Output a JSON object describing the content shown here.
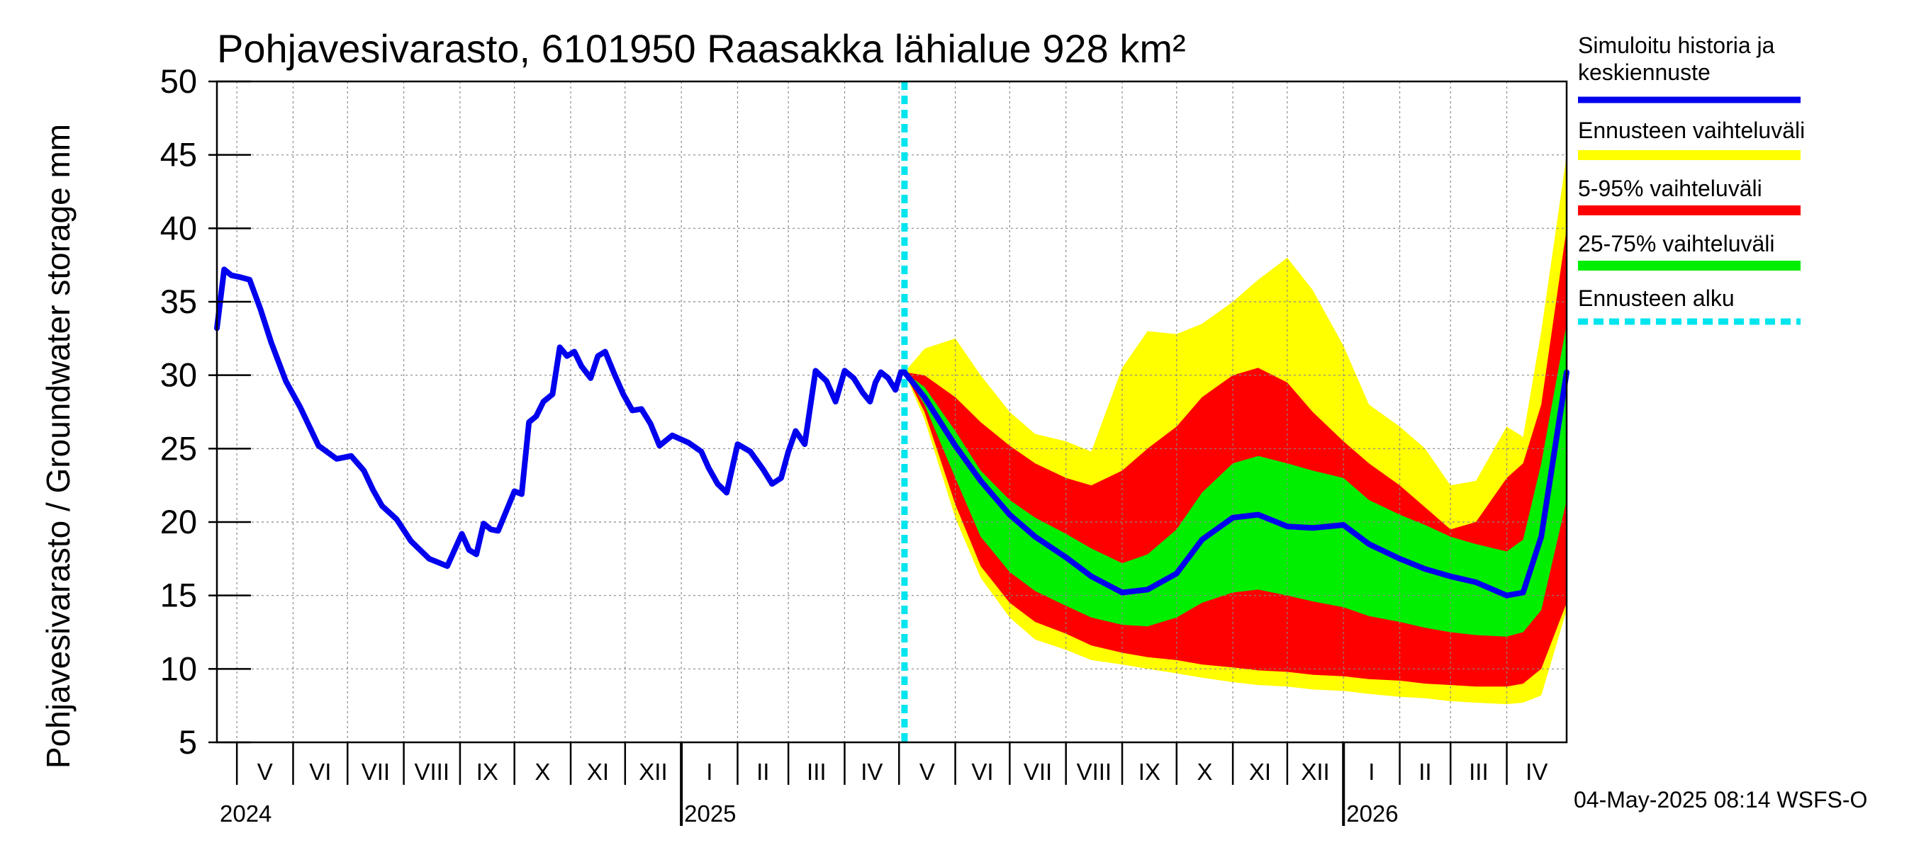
{
  "chart_data": {
    "type": "area",
    "title": "Pohjavesivarasto, 6101950 Raasakka lähialue 928 km²",
    "ylabel": "Pohjavesivarasto / Groundwater storage   mm",
    "ylim": [
      5,
      50
    ],
    "yticks": [
      5,
      10,
      15,
      20,
      25,
      30,
      35,
      40,
      45,
      50
    ],
    "x_range": [
      "2024-04-20",
      "2026-05-04"
    ],
    "grid": true,
    "months": [
      {
        "label": "V",
        "start": "2024-05-01"
      },
      {
        "label": "VI",
        "start": "2024-06-01"
      },
      {
        "label": "VII",
        "start": "2024-07-01"
      },
      {
        "label": "VIII",
        "start": "2024-08-01"
      },
      {
        "label": "IX",
        "start": "2024-09-01"
      },
      {
        "label": "X",
        "start": "2024-10-01"
      },
      {
        "label": "XI",
        "start": "2024-11-01"
      },
      {
        "label": "XII",
        "start": "2024-12-01"
      },
      {
        "label": "I",
        "start": "2025-01-01"
      },
      {
        "label": "II",
        "start": "2025-02-01"
      },
      {
        "label": "III",
        "start": "2025-03-01"
      },
      {
        "label": "IV",
        "start": "2025-04-01"
      },
      {
        "label": "V",
        "start": "2025-05-01"
      },
      {
        "label": "VI",
        "start": "2025-06-01"
      },
      {
        "label": "VII",
        "start": "2025-07-01"
      },
      {
        "label": "VIII",
        "start": "2025-08-01"
      },
      {
        "label": "IX",
        "start": "2025-09-01"
      },
      {
        "label": "X",
        "start": "2025-10-01"
      },
      {
        "label": "XI",
        "start": "2025-11-01"
      },
      {
        "label": "XII",
        "start": "2025-12-01"
      },
      {
        "label": "I",
        "start": "2026-01-01"
      },
      {
        "label": "II",
        "start": "2026-02-01"
      },
      {
        "label": "III",
        "start": "2026-03-01"
      },
      {
        "label": "IV",
        "start": "2026-04-01"
      }
    ],
    "years": [
      {
        "label": "2024",
        "start": "2024-05-01"
      },
      {
        "label": "2025",
        "start": "2025-01-01"
      },
      {
        "label": "2026",
        "start": "2026-01-01"
      }
    ],
    "forecast_start": "2025-05-04",
    "history": {
      "x": [
        "2024-04-20",
        "2024-04-24",
        "2024-04-28",
        "2024-05-02",
        "2024-05-08",
        "2024-05-14",
        "2024-05-20",
        "2024-05-28",
        "2024-06-05",
        "2024-06-15",
        "2024-06-25",
        "2024-07-03",
        "2024-07-10",
        "2024-07-15",
        "2024-07-20",
        "2024-07-28",
        "2024-08-05",
        "2024-08-15",
        "2024-08-25",
        "2024-09-02",
        "2024-09-06",
        "2024-09-10",
        "2024-09-14",
        "2024-09-18",
        "2024-09-22",
        "2024-09-26",
        "2024-10-01",
        "2024-10-05",
        "2024-10-09",
        "2024-10-13",
        "2024-10-17",
        "2024-10-22",
        "2024-10-26",
        "2024-10-30",
        "2024-11-03",
        "2024-11-07",
        "2024-11-12",
        "2024-11-16",
        "2024-11-20",
        "2024-11-25",
        "2024-11-30",
        "2024-12-05",
        "2024-12-10",
        "2024-12-15",
        "2024-12-20",
        "2024-12-27",
        "2025-01-05",
        "2025-01-12",
        "2025-01-16",
        "2025-01-21",
        "2025-01-26",
        "2025-02-01",
        "2025-02-08",
        "2025-02-15",
        "2025-02-20",
        "2025-02-25",
        "2025-03-01",
        "2025-03-05",
        "2025-03-10",
        "2025-03-16",
        "2025-03-22",
        "2025-03-27",
        "2025-04-01",
        "2025-04-06",
        "2025-04-11",
        "2025-04-15",
        "2025-04-18",
        "2025-04-21",
        "2025-04-25",
        "2025-04-29",
        "2025-05-02",
        "2025-05-04"
      ],
      "values": [
        33.2,
        37.2,
        36.8,
        36.7,
        36.5,
        34.5,
        32.2,
        29.6,
        27.8,
        25.2,
        24.3,
        24.5,
        23.5,
        22.2,
        21.1,
        20.2,
        18.7,
        17.5,
        17.0,
        19.2,
        18.1,
        17.8,
        19.9,
        19.5,
        19.4,
        20.6,
        22.1,
        21.9,
        26.8,
        27.2,
        28.2,
        28.7,
        31.9,
        31.3,
        31.6,
        30.6,
        29.8,
        31.3,
        31.6,
        30.1,
        28.7,
        27.6,
        27.7,
        26.7,
        25.2,
        25.9,
        25.4,
        24.8,
        23.7,
        22.6,
        22.0,
        25.3,
        24.8,
        23.6,
        22.6,
        23.0,
        24.8,
        26.2,
        25.3,
        30.3,
        29.6,
        28.2,
        30.3,
        29.8,
        28.8,
        28.2,
        29.5,
        30.2,
        29.8,
        29.0,
        30.2,
        30.2
      ]
    },
    "forecast": {
      "x": [
        "2025-05-04",
        "2025-05-15",
        "2025-06-01",
        "2025-06-15",
        "2025-07-01",
        "2025-07-15",
        "2025-08-01",
        "2025-08-15",
        "2025-09-01",
        "2025-09-15",
        "2025-10-01",
        "2025-10-15",
        "2025-11-01",
        "2025-11-15",
        "2025-12-01",
        "2025-12-15",
        "2026-01-01",
        "2026-01-15",
        "2026-02-01",
        "2026-02-15",
        "2026-03-01",
        "2026-03-15",
        "2026-04-01",
        "2026-04-10",
        "2026-04-20",
        "2026-05-04"
      ],
      "series": [
        {
          "name": "Simuloitu historia ja keskiennuste",
          "values": [
            30.2,
            28.5,
            25.2,
            22.8,
            20.5,
            19.0,
            17.6,
            16.3,
            15.2,
            15.4,
            16.5,
            18.8,
            20.3,
            20.5,
            19.7,
            19.6,
            19.8,
            18.5,
            17.5,
            16.8,
            16.3,
            15.9,
            15.0,
            15.2,
            19.0,
            30.2
          ]
        },
        {
          "name": "Ennusteen vaihteluväli",
          "low": [
            30.2,
            27.0,
            20.3,
            16.2,
            13.5,
            12.0,
            11.3,
            10.6,
            10.3,
            10.0,
            9.7,
            9.4,
            9.1,
            8.9,
            8.8,
            8.6,
            8.5,
            8.3,
            8.1,
            8.0,
            7.8,
            7.7,
            7.6,
            7.7,
            8.2,
            14.0
          ],
          "high": [
            30.2,
            31.8,
            32.5,
            30.0,
            27.5,
            26.0,
            25.5,
            24.8,
            30.5,
            33.0,
            32.8,
            33.5,
            35.0,
            36.5,
            38.0,
            35.8,
            32.0,
            28.0,
            26.5,
            25.0,
            22.5,
            22.8,
            26.5,
            25.8,
            33.0,
            45.0
          ]
        },
        {
          "name": "5-95% vaihteluväli",
          "low": [
            30.2,
            27.5,
            21.2,
            17.0,
            14.5,
            13.2,
            12.4,
            11.6,
            11.1,
            10.8,
            10.6,
            10.3,
            10.1,
            9.9,
            9.8,
            9.6,
            9.5,
            9.3,
            9.2,
            9.0,
            8.9,
            8.8,
            8.8,
            9.0,
            10.0,
            14.5
          ],
          "high": [
            30.2,
            30.0,
            28.5,
            26.8,
            25.2,
            24.0,
            23.0,
            22.5,
            23.5,
            25.0,
            26.5,
            28.5,
            30.0,
            30.5,
            29.5,
            27.5,
            25.5,
            24.0,
            22.5,
            21.0,
            19.5,
            20.0,
            23.0,
            24.0,
            28.0,
            40.0
          ]
        },
        {
          "name": "25-75% vaihteluväli",
          "low": [
            30.2,
            28.0,
            23.0,
            19.0,
            16.6,
            15.3,
            14.3,
            13.5,
            13.0,
            12.9,
            13.5,
            14.5,
            15.2,
            15.4,
            15.0,
            14.6,
            14.2,
            13.6,
            13.2,
            12.8,
            12.5,
            12.3,
            12.2,
            12.5,
            14.0,
            21.5
          ],
          "high": [
            30.2,
            29.2,
            26.2,
            23.5,
            21.5,
            20.3,
            19.2,
            18.2,
            17.2,
            17.8,
            19.5,
            22.0,
            24.0,
            24.5,
            24.0,
            23.5,
            23.0,
            21.5,
            20.5,
            19.8,
            19.0,
            18.5,
            18.0,
            18.8,
            24.0,
            33.5
          ]
        }
      ]
    },
    "legend": [
      {
        "label": "Simuloitu historia ja keskiennuste",
        "color": "#0000ee",
        "style": "thick-line"
      },
      {
        "label": "Ennusteen vaihteluväli",
        "color": "#ffff00",
        "style": "band"
      },
      {
        "label": "5-95% vaihteluväli",
        "color": "#ff0000",
        "style": "band"
      },
      {
        "label": "25-75% vaihteluväli",
        "color": "#00ee00",
        "style": "band"
      },
      {
        "label": "Ennusteen alku",
        "color": "#00e5ee",
        "style": "dashed"
      }
    ],
    "legend_position": "right",
    "footer": "04-May-2025 08:14 WSFS-O"
  }
}
